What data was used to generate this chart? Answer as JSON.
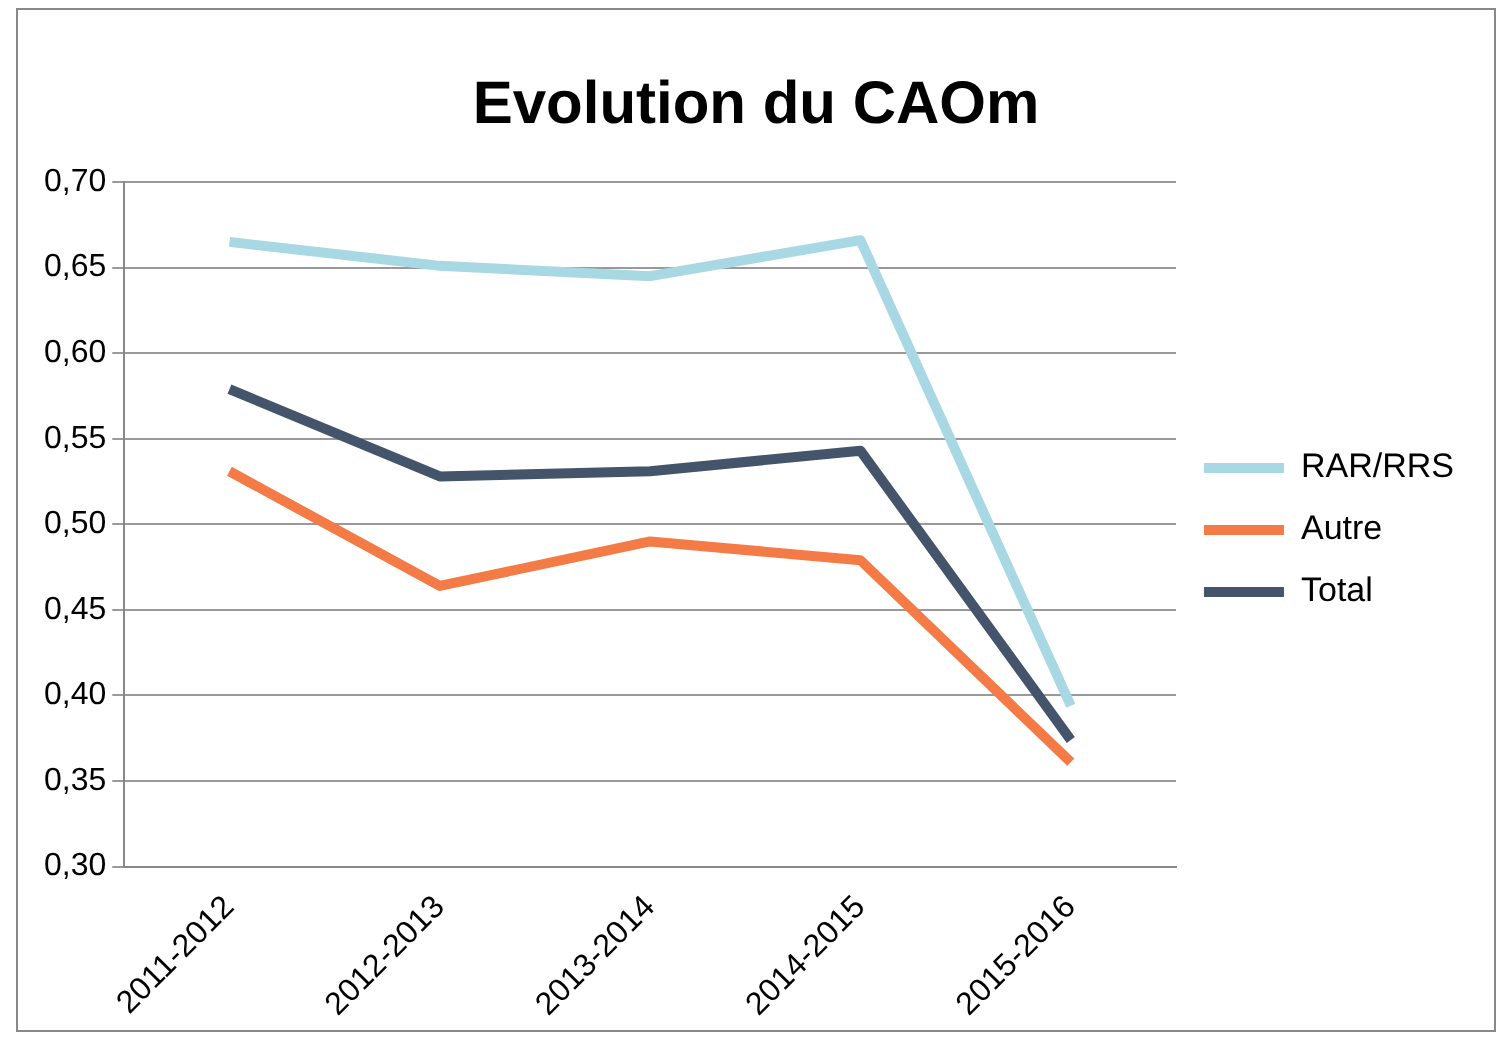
{
  "chart_data": {
    "type": "line",
    "title": "Evolution du CAOm",
    "categories": [
      "2011-2012",
      "2012-2013",
      "2013-2014",
      "2014-2015",
      "2015-2016"
    ],
    "series": [
      {
        "name": "RAR/RRS",
        "color": "#a8d8e4",
        "values": [
          0.665,
          0.651,
          0.645,
          0.666,
          0.394
        ]
      },
      {
        "name": "Autre",
        "color": "#f47b45",
        "values": [
          0.531,
          0.464,
          0.49,
          0.479,
          0.361
        ]
      },
      {
        "name": "Total",
        "color": "#44546a",
        "values": [
          0.579,
          0.528,
          0.531,
          0.543,
          0.374
        ]
      }
    ],
    "ylim": [
      0.3,
      0.7
    ],
    "yticks": [
      {
        "value": 0.3,
        "label": "0,30"
      },
      {
        "value": 0.35,
        "label": "0,35"
      },
      {
        "value": 0.4,
        "label": "0,40"
      },
      {
        "value": 0.45,
        "label": "0,45"
      },
      {
        "value": 0.5,
        "label": "0,50"
      },
      {
        "value": 0.55,
        "label": "0,55"
      },
      {
        "value": 0.6,
        "label": "0,60"
      },
      {
        "value": 0.65,
        "label": "0,65"
      },
      {
        "value": 0.7,
        "label": "0,70"
      }
    ],
    "grid": "y",
    "legend": "right",
    "marker": "none",
    "line_style": "solid"
  }
}
